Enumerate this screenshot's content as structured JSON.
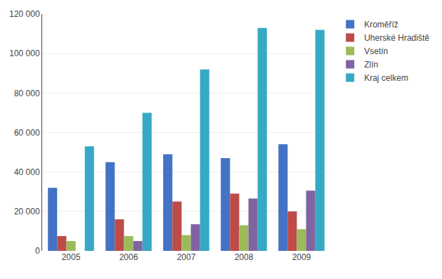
{
  "chart_data": {
    "type": "bar",
    "categories": [
      "2005",
      "2006",
      "2007",
      "2008",
      "2009"
    ],
    "series": [
      {
        "name": "Kroměříž",
        "color": "#4472C4",
        "values": [
          32000,
          45000,
          49000,
          47000,
          54000
        ]
      },
      {
        "name": "Uherské Hradiště",
        "color": "#BE4B48",
        "values": [
          7500,
          16000,
          25000,
          29000,
          20000
        ]
      },
      {
        "name": "Vsetín",
        "color": "#9BBB59",
        "values": [
          5000,
          7500,
          8000,
          13000,
          11000
        ]
      },
      {
        "name": "Zlín",
        "color": "#8064A2",
        "values": [
          0,
          5000,
          13500,
          26500,
          30500
        ]
      },
      {
        "name": "Kraj celkem",
        "color": "#36A9C5",
        "values": [
          53000,
          70000,
          92000,
          113000,
          112000
        ]
      }
    ],
    "ylim": [
      0,
      120000
    ],
    "yticks": [
      0,
      {
        "value": 20000,
        "label": "20 000"
      },
      {
        "value": 40000,
        "label": "40 000"
      },
      {
        "value": 60000,
        "label": "60 000"
      },
      {
        "value": 80000,
        "label": "80 000"
      },
      {
        "value": 100000,
        "label": "100 000"
      },
      {
        "value": 120000,
        "label": "120 000"
      }
    ],
    "grid": true,
    "legend": "right"
  }
}
